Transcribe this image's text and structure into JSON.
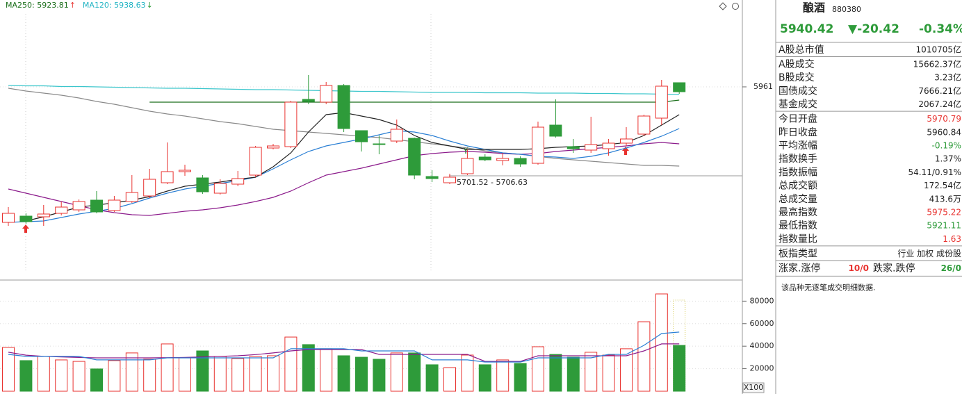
{
  "chart_data": [
    {
      "type": "candlestick",
      "legend": [
        {
          "text": "MA250: 5923.81",
          "arrow": "↑",
          "color": "#1a6e1a",
          "arrow_color": "#e8322f"
        },
        {
          "text": "MA120: 5938.63",
          "arrow": "↓",
          "color": "#22b4c4",
          "arrow_color": "#2e9b3a"
        }
      ],
      "ylim": [
        5411,
        6211
      ],
      "yticks": [
        5961
      ],
      "up_color": "#e8322f",
      "down_color": "#2e9b3a",
      "open": [
        5571,
        5589,
        5587,
        5597,
        5607,
        5635,
        5605,
        5631,
        5647,
        5685,
        5717,
        5699,
        5655,
        5681,
        5707,
        5785,
        5789,
        5925,
        5917,
        5965,
        5835,
        5797,
        5805,
        5813,
        5703,
        5685,
        5711,
        5759,
        5749,
        5755,
        5741,
        5851,
        5789,
        5779,
        5783,
        5799,
        5825,
        5871,
        5973
      ],
      "high": [
        5615,
        5597,
        5621,
        5631,
        5637,
        5661,
        5647,
        5707,
        5725,
        5801,
        5737,
        5707,
        5695,
        5719,
        5791,
        5797,
        5921,
        5995,
        5975,
        5969,
        5835,
        5821,
        5867,
        5815,
        5721,
        5711,
        5781,
        5767,
        5771,
        5761,
        5861,
        5925,
        5811,
        5875,
        5811,
        5845,
        5881,
        5981,
        5973
      ],
      "low": [
        5561,
        5567,
        5561,
        5591,
        5601,
        5597,
        5601,
        5627,
        5641,
        5681,
        5705,
        5653,
        5651,
        5675,
        5701,
        5781,
        5785,
        5911,
        5911,
        5831,
        5775,
        5767,
        5799,
        5695,
        5687,
        5681,
        5707,
        5747,
        5735,
        5731,
        5737,
        5815,
        5771,
        5771,
        5763,
        5791,
        5819,
        5851,
        5941
      ],
      "close": [
        5597,
        5573,
        5595,
        5615,
        5631,
        5601,
        5635,
        5657,
        5695,
        5717,
        5721,
        5659,
        5683,
        5697,
        5787,
        5791,
        5917,
        5919,
        5965,
        5841,
        5803,
        5795,
        5839,
        5707,
        5697,
        5701,
        5755,
        5751,
        5755,
        5739,
        5845,
        5819,
        5783,
        5795,
        5799,
        5811,
        5877,
        5963,
        5947
      ],
      "lines": [
        {
          "color": "#1a6e1a",
          "values": [
            null,
            null,
            null,
            null,
            null,
            null,
            null,
            null,
            5917,
            5917,
            5917,
            5917,
            5917,
            5917,
            5917,
            5917,
            5917,
            5917,
            5917,
            5917,
            5917,
            5917,
            5917,
            5917,
            5917,
            5917,
            5917,
            5917,
            5917,
            5917,
            5917,
            5917,
            5917,
            5917,
            5917,
            5917,
            5917,
            5917,
            5923
          ]
        },
        {
          "color": "#3cc6cc",
          "values": [
            5965,
            5964,
            5964,
            5962,
            5962,
            5961,
            5960,
            5959,
            5958,
            5957,
            5957,
            5956,
            5955,
            5954,
            5953,
            5953,
            5952,
            5951,
            5950,
            5949,
            5948,
            5948,
            5947,
            5946,
            5945,
            5945,
            5945,
            5944,
            5944,
            5944,
            5943,
            5943,
            5943,
            5942,
            5942,
            5941,
            5941,
            5940,
            5939
          ]
        },
        {
          "color": "#8a8a8a",
          "values": [
            5957,
            5949,
            5943,
            5937,
            5929,
            5919,
            5911,
            5901,
            5891,
            5883,
            5877,
            5869,
            5861,
            5855,
            5847,
            5839,
            5835,
            5831,
            5827,
            5823,
            5819,
            5815,
            5809,
            5803,
            5797,
            5791,
            5785,
            5777,
            5771,
            5767,
            5761,
            5755,
            5751,
            5747,
            5743,
            5739,
            5735,
            5735,
            5733
          ]
        },
        {
          "color": "#8b1a8b",
          "values": [
            5667,
            5655,
            5643,
            5631,
            5619,
            5607,
            5599,
            5593,
            5591,
            5597,
            5603,
            5607,
            5613,
            5621,
            5631,
            5643,
            5661,
            5685,
            5707,
            5717,
            5727,
            5739,
            5751,
            5763,
            5769,
            5773,
            5775,
            5773,
            5769,
            5767,
            5769,
            5775,
            5779,
            5783,
            5787,
            5791,
            5797,
            5801,
            5797
          ]
        },
        {
          "color": "#2a7fd4",
          "values": [
            5571,
            5573,
            5575,
            5585,
            5595,
            5603,
            5611,
            5625,
            5641,
            5655,
            5667,
            5675,
            5683,
            5691,
            5701,
            5725,
            5751,
            5775,
            5791,
            5801,
            5811,
            5823,
            5835,
            5831,
            5821,
            5805,
            5791,
            5781,
            5771,
            5767,
            5761,
            5759,
            5755,
            5761,
            5771,
            5785,
            5801,
            5819,
            5841
          ]
        },
        {
          "color": "#222222",
          "values": [
            null,
            5575,
            5587,
            5601,
            5615,
            5621,
            5627,
            5635,
            5645,
            5661,
            5675,
            5681,
            5687,
            5695,
            5701,
            5731,
            5771,
            5831,
            5881,
            5887,
            5877,
            5867,
            5851,
            5821,
            5801,
            5791,
            5781,
            5781,
            5781,
            5781,
            5783,
            5787,
            5789,
            5791,
            5795,
            5801,
            5821,
            5851,
            5881
          ]
        }
      ],
      "annotation": {
        "text": "5701.52 - 5706.63",
        "value": 5705
      }
    },
    {
      "type": "volume",
      "unit": "X100",
      "ylim": [
        0,
        97500
      ],
      "yticks": [
        20000,
        40000,
        60000,
        80000
      ],
      "values": [
        38900,
        27200,
        30900,
        27800,
        26500,
        19800,
        27200,
        34000,
        28400,
        42000,
        29600,
        35800,
        30900,
        29000,
        30900,
        31500,
        48100,
        41400,
        37700,
        31500,
        30200,
        28400,
        34000,
        34000,
        23500,
        21000,
        32100,
        23500,
        27800,
        24700,
        39500,
        32700,
        30200,
        34600,
        32100,
        37700,
        61700,
        86400,
        40700
      ],
      "projected": 80900,
      "projected_color": "#d4c84a",
      "lines": [
        {
          "color": "#8b1a8b",
          "values": [
            34600,
            32000,
            31000,
            30500,
            30000,
            29600,
            29600,
            29600,
            29600,
            29800,
            30000,
            30500,
            31000,
            31500,
            32500,
            34000,
            35800,
            37000,
            37000,
            37000,
            37000,
            32700,
            32700,
            32700,
            32700,
            32700,
            32700,
            26500,
            26500,
            26500,
            31500,
            31500,
            31500,
            31500,
            31500,
            31500,
            35800,
            42000,
            42000
          ]
        },
        {
          "color": "#2a7fd4",
          "values": [
            32700,
            30900,
            30900,
            30900,
            30900,
            27800,
            27800,
            27800,
            27800,
            29600,
            29600,
            29600,
            29600,
            29600,
            29600,
            29600,
            37700,
            37700,
            37700,
            37700,
            35800,
            35800,
            35800,
            35800,
            27800,
            27800,
            27800,
            25900,
            25900,
            25900,
            29600,
            29600,
            29600,
            29600,
            32700,
            32700,
            40700,
            51200,
            52500
          ]
        }
      ]
    }
  ],
  "panel": {
    "name": "酿酒",
    "code": "880380",
    "price": "5940.42",
    "change": "▼-20.42",
    "change_pct": "-0.34%",
    "price_color": "#2e9b3a",
    "groups": [
      [
        {
          "label": "A股总市值",
          "value": "1010705亿"
        }
      ],
      [
        {
          "label": "A股成交",
          "value": "15662.37亿"
        },
        {
          "label": "B股成交",
          "value": "3.23亿"
        },
        {
          "label": "国债成交",
          "value": "7666.21亿"
        },
        {
          "label": "基金成交",
          "value": "2067.24亿"
        }
      ],
      [
        {
          "label": "今日开盘",
          "value": "5970.79",
          "color": "#e8322f"
        },
        {
          "label": "昨日收盘",
          "value": "5960.84"
        },
        {
          "label": "平均涨幅",
          "value": "-0.19%",
          "color": "#2e9b3a"
        },
        {
          "label": "指数换手",
          "value": "1.37%"
        },
        {
          "label": "指数振幅",
          "value": "54.11/0.91%"
        },
        {
          "label": "总成交额",
          "value": "172.54亿"
        },
        {
          "label": "总成交量",
          "value": "413.6万"
        },
        {
          "label": "最高指数",
          "value": "5975.22",
          "color": "#e8322f"
        },
        {
          "label": "最低指数",
          "value": "5921.11",
          "color": "#2e9b3a"
        },
        {
          "label": "指数量比",
          "value": "1.63",
          "color": "#e8322f"
        }
      ],
      [
        {
          "label": "板指类型",
          "value": "行业 加权 成份股"
        }
      ]
    ],
    "breadth": {
      "up_label": "涨家.涨停",
      "up": "10/0",
      "up_color": "#e8322f",
      "down_label": "跌家.跌停",
      "down": "26/0",
      "down_color": "#2e9b3a"
    },
    "note": "该品种无逐笔成交明细数据."
  }
}
